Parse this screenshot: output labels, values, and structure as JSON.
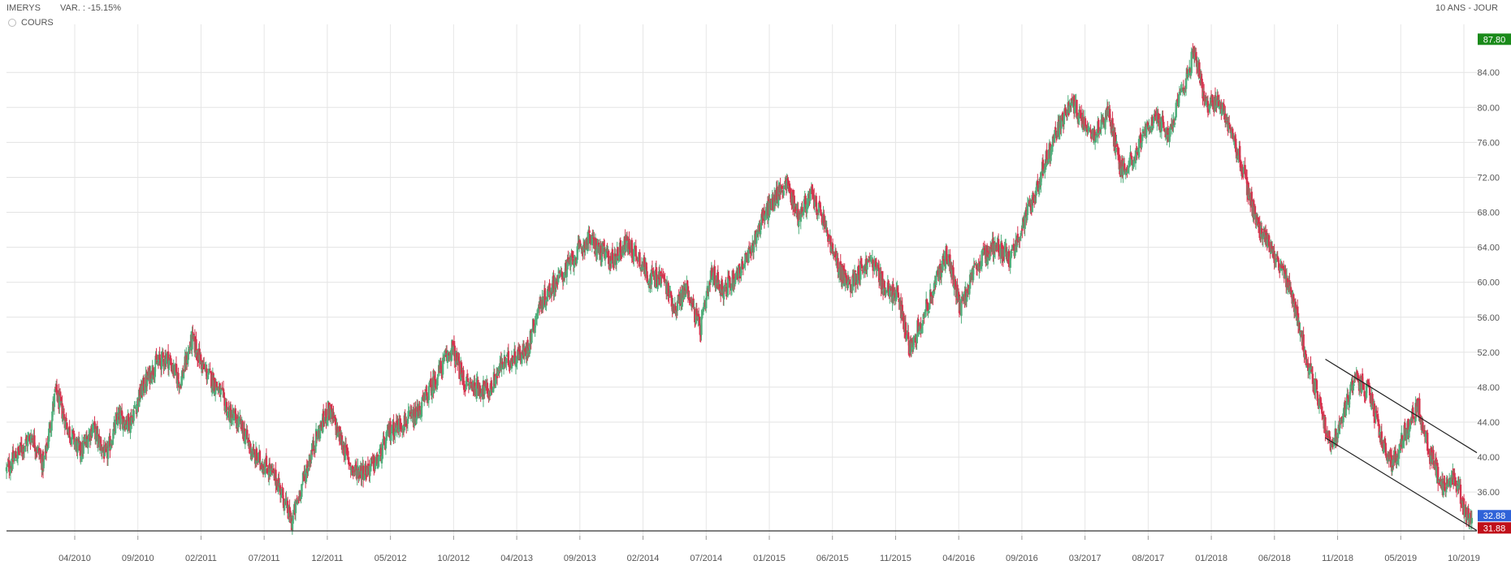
{
  "header": {
    "ticker": "IMERYS",
    "variation": "VAR. : -15.15%",
    "period": "10 ANS - JOUR"
  },
  "legend": {
    "label": "COURS"
  },
  "colors": {
    "up": "#4fae7b",
    "down": "#d6334e",
    "max_badge": "#1a8a1a",
    "last_badge": "#2f62d8",
    "min_badge": "#c0101a"
  },
  "chart_data": {
    "type": "line",
    "title": "",
    "xlabel": "",
    "ylabel": "",
    "ylim": [
      31.0,
      89.5
    ],
    "y_ticks": [
      36,
      40,
      44,
      48,
      52,
      56,
      60,
      64,
      68,
      72,
      76,
      80,
      84
    ],
    "y_tick_labels": [
      "36.00",
      "40.00",
      "44.00",
      "48.00",
      "52.00",
      "56.00",
      "60.00",
      "64.00",
      "68.00",
      "72.00",
      "76.00",
      "80.00",
      "84.00"
    ],
    "x_tick_labels": [
      "04/2010",
      "09/2010",
      "02/2011",
      "07/2011",
      "12/2011",
      "05/2012",
      "10/2012",
      "04/2013",
      "09/2013",
      "02/2014",
      "07/2014",
      "01/2015",
      "06/2015",
      "11/2015",
      "04/2016",
      "09/2016",
      "03/2017",
      "08/2017",
      "01/2018",
      "06/2018",
      "11/2018",
      "05/2019",
      "10/2019"
    ],
    "grid": true,
    "badges": {
      "max": "87.80",
      "last": "32.88",
      "min": "31.88"
    },
    "series": [
      {
        "values": [
          [
            2010.0,
            38.5
          ],
          [
            2010.08,
            40.5
          ],
          [
            2010.17,
            42.5
          ],
          [
            2010.25,
            39.0
          ],
          [
            2010.33,
            47.5
          ],
          [
            2010.42,
            43.0
          ],
          [
            2010.5,
            40.5
          ],
          [
            2010.58,
            43.5
          ],
          [
            2010.67,
            40.0
          ],
          [
            2010.75,
            44.5
          ],
          [
            2010.83,
            44.0
          ],
          [
            2010.92,
            48.0
          ],
          [
            2011.0,
            50.5
          ],
          [
            2011.08,
            51.5
          ],
          [
            2011.17,
            48.5
          ],
          [
            2011.25,
            53.5
          ],
          [
            2011.33,
            50.0
          ],
          [
            2011.42,
            48.0
          ],
          [
            2011.5,
            45.0
          ],
          [
            2011.58,
            43.5
          ],
          [
            2011.67,
            40.0
          ],
          [
            2011.75,
            39.0
          ],
          [
            2011.83,
            37.0
          ],
          [
            2011.92,
            32.5
          ],
          [
            2012.0,
            37.5
          ],
          [
            2012.08,
            42.0
          ],
          [
            2012.17,
            45.5
          ],
          [
            2012.25,
            42.0
          ],
          [
            2012.33,
            38.5
          ],
          [
            2012.42,
            38.5
          ],
          [
            2012.5,
            39.5
          ],
          [
            2012.58,
            43.0
          ],
          [
            2012.67,
            44.0
          ],
          [
            2012.75,
            44.5
          ],
          [
            2012.83,
            47.0
          ],
          [
            2012.92,
            50.0
          ],
          [
            2013.0,
            52.5
          ],
          [
            2013.08,
            48.5
          ],
          [
            2013.17,
            48.0
          ],
          [
            2013.25,
            47.5
          ],
          [
            2013.33,
            50.5
          ],
          [
            2013.42,
            51.5
          ],
          [
            2013.5,
            52.0
          ],
          [
            2013.58,
            57.0
          ],
          [
            2013.67,
            59.5
          ],
          [
            2013.75,
            61.0
          ],
          [
            2013.83,
            63.0
          ],
          [
            2013.92,
            65.0
          ],
          [
            2014.0,
            63.5
          ],
          [
            2014.08,
            62.5
          ],
          [
            2014.17,
            64.5
          ],
          [
            2014.25,
            63.0
          ],
          [
            2014.33,
            60.5
          ],
          [
            2014.42,
            60.5
          ],
          [
            2014.5,
            57.0
          ],
          [
            2014.58,
            59.5
          ],
          [
            2014.67,
            54.5
          ],
          [
            2014.75,
            61.0
          ],
          [
            2014.83,
            59.0
          ],
          [
            2014.92,
            61.0
          ],
          [
            2015.0,
            63.0
          ],
          [
            2015.08,
            67.0
          ],
          [
            2015.17,
            69.5
          ],
          [
            2015.25,
            71.5
          ],
          [
            2015.33,
            67.5
          ],
          [
            2015.42,
            70.0
          ],
          [
            2015.5,
            67.0
          ],
          [
            2015.58,
            62.5
          ],
          [
            2015.67,
            59.5
          ],
          [
            2015.75,
            61.5
          ],
          [
            2015.83,
            62.5
          ],
          [
            2015.92,
            59.0
          ],
          [
            2016.0,
            58.5
          ],
          [
            2016.08,
            52.5
          ],
          [
            2016.17,
            56.0
          ],
          [
            2016.25,
            59.5
          ],
          [
            2016.33,
            63.5
          ],
          [
            2016.42,
            57.0
          ],
          [
            2016.5,
            60.5
          ],
          [
            2016.58,
            63.0
          ],
          [
            2016.67,
            64.5
          ],
          [
            2016.75,
            62.5
          ],
          [
            2016.83,
            66.0
          ],
          [
            2016.92,
            70.0
          ],
          [
            2017.0,
            74.0
          ],
          [
            2017.08,
            77.5
          ],
          [
            2017.17,
            80.5
          ],
          [
            2017.25,
            78.5
          ],
          [
            2017.33,
            77.0
          ],
          [
            2017.42,
            79.5
          ],
          [
            2017.5,
            73.0
          ],
          [
            2017.58,
            74.0
          ],
          [
            2017.67,
            77.5
          ],
          [
            2017.75,
            78.5
          ],
          [
            2017.83,
            77.0
          ],
          [
            2017.92,
            82.0
          ],
          [
            2018.0,
            86.5
          ],
          [
            2018.08,
            80.0
          ],
          [
            2018.17,
            80.5
          ],
          [
            2018.25,
            77.0
          ],
          [
            2018.33,
            72.5
          ],
          [
            2018.42,
            66.5
          ],
          [
            2018.5,
            64.5
          ],
          [
            2018.58,
            61.5
          ],
          [
            2018.67,
            57.5
          ],
          [
            2018.75,
            51.5
          ],
          [
            2018.83,
            47.0
          ],
          [
            2018.92,
            41.0
          ],
          [
            2019.0,
            45.0
          ],
          [
            2019.08,
            49.0
          ],
          [
            2019.17,
            47.5
          ],
          [
            2019.25,
            42.5
          ],
          [
            2019.33,
            39.0
          ],
          [
            2019.42,
            43.0
          ],
          [
            2019.5,
            46.0
          ],
          [
            2019.58,
            40.5
          ],
          [
            2019.67,
            36.5
          ],
          [
            2019.75,
            38.0
          ],
          [
            2019.83,
            33.5
          ],
          [
            2019.87,
            32.9
          ]
        ]
      }
    ]
  }
}
